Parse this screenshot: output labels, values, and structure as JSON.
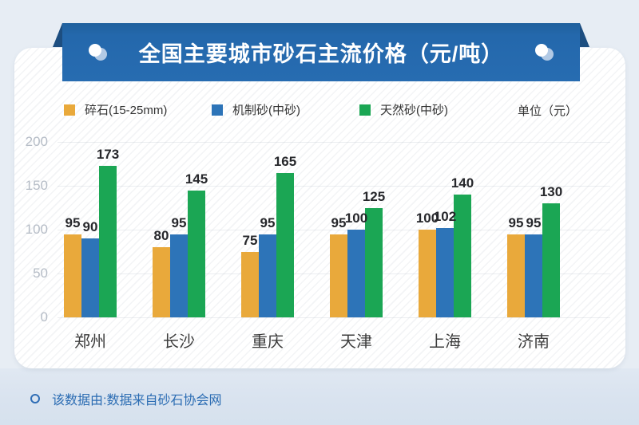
{
  "banner": {
    "title": "全国主要城市砂石主流价格（元/吨）"
  },
  "legend": {
    "items": [
      {
        "label": "碎石(15-25mm)",
        "color": "#e9a93b"
      },
      {
        "label": "机制砂(中砂)",
        "color": "#2d74b8"
      },
      {
        "label": "天然砂(中砂)",
        "color": "#1ba654"
      }
    ],
    "unit_label": "单位（元）"
  },
  "chart_data": {
    "type": "bar",
    "title": "全国主要城市砂石主流价格（元/吨）",
    "categories": [
      "郑州",
      "长沙",
      "重庆",
      "天津",
      "上海",
      "济南"
    ],
    "series": [
      {
        "name": "碎石(15-25mm)",
        "color": "#e9a93b",
        "values": [
          95,
          80,
          75,
          95,
          100,
          95
        ]
      },
      {
        "name": "机制砂(中砂)",
        "color": "#2d74b8",
        "values": [
          90,
          95,
          95,
          100,
          102,
          95
        ]
      },
      {
        "name": "天然砂(中砂)",
        "color": "#1ba654",
        "values": [
          173,
          145,
          165,
          125,
          140,
          130
        ]
      }
    ],
    "ylim": [
      0,
      200
    ],
    "yticks": [
      0,
      50,
      100,
      150,
      200
    ],
    "grid": true,
    "legend_position": "top",
    "unit": "单位（元）",
    "xlabel": "",
    "ylabel": ""
  },
  "footer": {
    "note": "该数据由:数据来自砂石协会网"
  },
  "colors": {
    "banner": "#2468ac",
    "banner_fold": "#1d4e80",
    "card_bg": "#ffffff",
    "footer_text": "#2b6cb3",
    "axis_label": "#b5bcc6",
    "value_label": "#26272b"
  }
}
